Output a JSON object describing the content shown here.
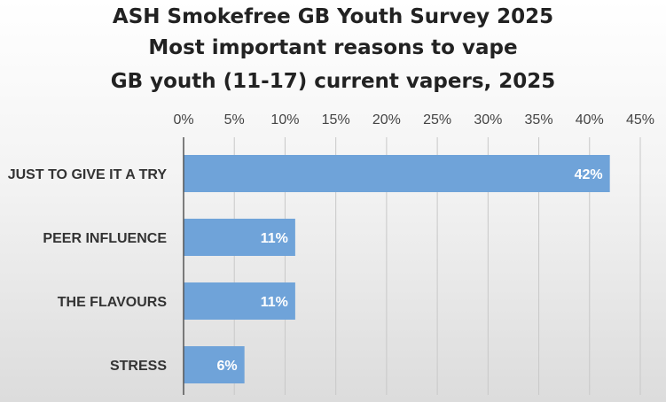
{
  "chart_data": {
    "type": "bar",
    "orientation": "horizontal",
    "title_lines": [
      "ASH Smokefree GB Youth Survey 2025",
      "Most important reasons to vape",
      "GB youth (11-17) current vapers, 2025"
    ],
    "categories": [
      "JUST TO GIVE IT A TRY",
      "PEER INFLUENCE",
      "THE FLAVOURS",
      "STRESS"
    ],
    "values": [
      42,
      11,
      11,
      6
    ],
    "data_labels": [
      "42%",
      "11%",
      "11%",
      "6%"
    ],
    "x_ticks": [
      "0%",
      "5%",
      "10%",
      "15%",
      "20%",
      "25%",
      "30%",
      "35%",
      "40%",
      "45%"
    ],
    "xlim": [
      0,
      45
    ],
    "x_tick_step": 5,
    "x_axis_position": "top",
    "grid": true,
    "legend": "none",
    "bar_color": "#6fa3d9",
    "gridline_color": "#c8c8c8"
  }
}
